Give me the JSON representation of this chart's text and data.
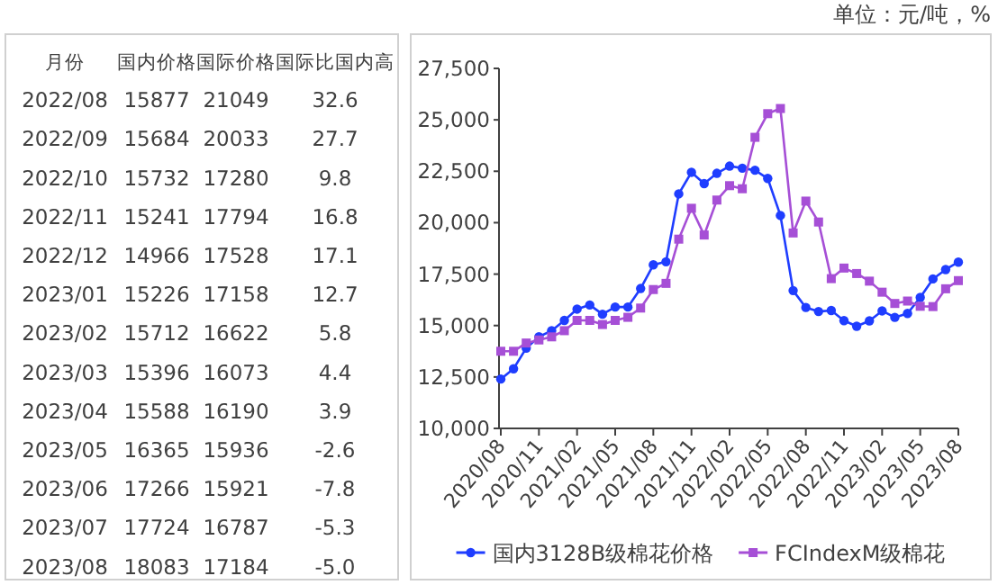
{
  "chart_data": [
    {
      "type": "other",
      "annotations": [
        "月份",
        "国内价格",
        "国际价格",
        "国际比国内高",
        "2022/08",
        "15877",
        "21049",
        "32.6",
        "2022/09",
        "15684",
        "20033",
        "27.7",
        "2022/10",
        "15732",
        "17280",
        "9.8",
        "2022/11",
        "15241",
        "17794",
        "16.8",
        "2022/12",
        "14966",
        "17528",
        "17.1",
        "2023/01",
        "15226",
        "17158",
        "12.7",
        "2023/02",
        "15712",
        "16622",
        "5.8",
        "2023/03",
        "15396",
        "16073",
        "4.4",
        "2023/04",
        "15588",
        "16190",
        "3.9",
        "2023/05",
        "16365",
        "15936",
        "-2.6",
        "2023/06",
        "17266",
        "15921",
        "-7.8",
        "2023/07",
        "17724",
        "16787",
        "-5.3",
        "2023/08",
        "18083",
        "17184",
        "-5.0"
      ]
    },
    {
      "type": "line",
      "annotations": [
        "单位：元/吨，%"
      ],
      "categories": [
        "2020/08",
        null,
        null,
        "2020/11",
        null,
        null,
        "2021/02",
        null,
        null,
        "2021/05",
        null,
        null,
        "2021/08",
        null,
        null,
        "2021/11",
        null,
        null,
        "2022/02",
        null,
        null,
        "2022/05",
        null,
        null,
        "2022/08",
        null,
        null,
        "2022/11",
        null,
        null,
        "2023/02",
        null,
        null,
        "2023/05",
        null,
        null,
        "2023/08"
      ],
      "ylim": [
        10000,
        27500
      ],
      "yticks": [
        {
          "value": 10000,
          "label": "10,000"
        },
        {
          "value": 12500,
          "label": "12,500"
        },
        {
          "value": 15000,
          "label": "15,000"
        },
        {
          "value": 17500,
          "label": "17,500"
        },
        {
          "value": 20000,
          "label": "20,000"
        },
        {
          "value": 22500,
          "label": "22,500"
        },
        {
          "value": 25000,
          "label": "25,000"
        },
        {
          "value": 27500,
          "label": "27,500"
        }
      ],
      "grid": false,
      "legend": "bottom",
      "series": [
        {
          "name": "国内3128B级棉花价格",
          "color": "#1f3dff",
          "marker": "circle",
          "values": [
            12400,
            12900,
            13900,
            14450,
            14750,
            15250,
            15800,
            16000,
            15550,
            15900,
            15900,
            16800,
            17950,
            18100,
            21400,
            22450,
            21900,
            22400,
            22750,
            22650,
            22550,
            22150,
            20350,
            16700,
            15877,
            15684,
            15732,
            15241,
            14966,
            15226,
            15712,
            15396,
            15588,
            16365,
            17266,
            17724,
            18083
          ]
        },
        {
          "name": "FCIndexM级棉花",
          "color": "#a64fd6",
          "marker": "square",
          "values": [
            13750,
            13750,
            14150,
            14300,
            14450,
            14750,
            15250,
            15250,
            15050,
            15250,
            15400,
            15850,
            16750,
            17050,
            19200,
            20700,
            19400,
            21100,
            21800,
            21650,
            24150,
            25300,
            25550,
            19500,
            21049,
            20033,
            17280,
            17794,
            17528,
            17158,
            16622,
            16073,
            16190,
            15936,
            15921,
            16787,
            17184
          ]
        }
      ]
    }
  ]
}
